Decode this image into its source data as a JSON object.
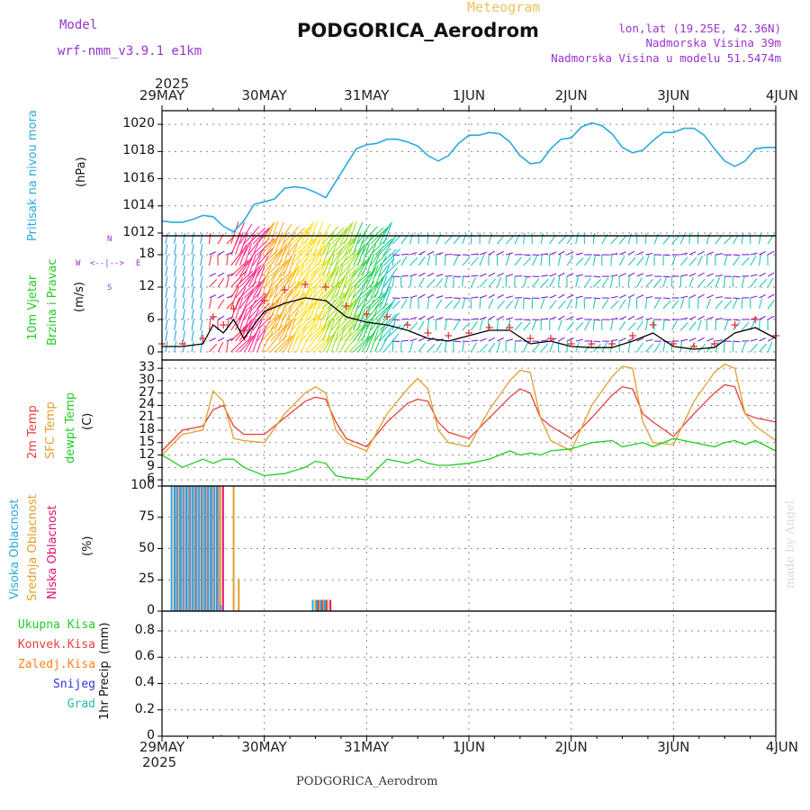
{
  "header": {
    "model_label": "Model",
    "model_name": "wrf-nmm_v3.9.1 e1km",
    "chart_kind": "Meteogram",
    "station": "PODGORICA_Aerodrom",
    "coords": "lon,lat (19.25E, 42.36N)",
    "elevation": "Nadmorska Visina 39m",
    "model_elevation": "Nadmorska Visina u modelu 51.5474m",
    "footer_station": "PODGORICA_Aerodrom",
    "credit": "made by Angel"
  },
  "colors": {
    "model_text": "#9933cc",
    "meteogram_text": "#f0c060",
    "info_text": "#9933cc",
    "pressure": "#29a9e0",
    "wind_line": "#000000",
    "gust_marks": "#e03030",
    "temp2m": "#e8403a",
    "sfc_temp": "#e0a030",
    "dewpt": "#22cc22",
    "cloud_high": "#29a9e0",
    "cloud_mid": "#e0a030",
    "cloud_low": "#e01070",
    "precip_total": "#22cc22",
    "precip_conv": "#e8403a",
    "precip_frozen": "#ff8020",
    "precip_snow": "#3333dd",
    "precip_graupel": "#22bbaa"
  },
  "axes": {
    "year": "2025",
    "dates": [
      "29MAY",
      "30MAY",
      "31MAY",
      "1JUN",
      "2JUN",
      "3JUN",
      "4JUN"
    ],
    "x_range_days": [
      0,
      6
    ]
  },
  "panels": {
    "pressure": {
      "label": "Pritisak na nivou mora",
      "unit": "(hPa)",
      "ticks": [
        "1012",
        "1014",
        "1016",
        "1018",
        "1020"
      ]
    },
    "wind": {
      "label": "10m Vjetar",
      "label2": "Brzina i Pravac",
      "unit": "(m/s)",
      "ticks": [
        "0",
        "6",
        "12",
        "18"
      ],
      "compass": {
        "n": "N",
        "s": "S",
        "w": "W",
        "e": "E",
        "arrows": "<--|-->"
      }
    },
    "temp": {
      "label1": "2m Temp",
      "label2": "SFC Temp",
      "label3": "dewpt Temp",
      "unit": "(C)",
      "ticks": [
        "6",
        "9",
        "12",
        "15",
        "18",
        "21",
        "24",
        "27",
        "30",
        "33"
      ]
    },
    "cloud": {
      "label1": "Visoka Oblacnost",
      "label2": "Srednja Oblacnost",
      "label3": "Niska Oblacnost",
      "unit": "(%)",
      "ticks": [
        "0",
        "25",
        "50",
        "75",
        "100"
      ]
    },
    "precip": {
      "label": "1hr Precip",
      "unit": "(mm)",
      "ticks": [
        "0",
        "0.2",
        "0.4",
        "0.6",
        "0.8"
      ],
      "legend": [
        "Ukupna Kisa",
        "Konvek.Kisa",
        "Zaledj.Kisa",
        "Snijeg",
        "Grad"
      ]
    }
  },
  "chart_data": [
    {
      "type": "line",
      "name": "Pritisak na nivou mora",
      "unit": "hPa",
      "ylim": [
        1011.8,
        1021
      ],
      "x_days": [
        0,
        0.1,
        0.2,
        0.3,
        0.4,
        0.5,
        0.6,
        0.7,
        0.8,
        0.9,
        1.0,
        1.1,
        1.2,
        1.3,
        1.4,
        1.5,
        1.6,
        1.7,
        1.8,
        1.9,
        2.0,
        2.1,
        2.2,
        2.3,
        2.4,
        2.5,
        2.6,
        2.7,
        2.8,
        2.9,
        3.0,
        3.1,
        3.2,
        3.3,
        3.4,
        3.5,
        3.6,
        3.7,
        3.8,
        3.9,
        4.0,
        4.1,
        4.2,
        4.3,
        4.4,
        4.5,
        4.6,
        4.7,
        4.8,
        4.9,
        5.0,
        5.1,
        5.2,
        5.3,
        5.4,
        5.5,
        5.6,
        5.7,
        5.8,
        5.9,
        6.0
      ],
      "values": [
        1012.9,
        1012.8,
        1012.8,
        1013.0,
        1013.3,
        1013.2,
        1012.5,
        1012.1,
        1012.9,
        1014.1,
        1014.3,
        1014.5,
        1015.3,
        1015.4,
        1015.3,
        1015.0,
        1014.6,
        1015.8,
        1017.0,
        1018.2,
        1018.5,
        1018.6,
        1018.9,
        1018.9,
        1018.7,
        1018.4,
        1017.7,
        1017.3,
        1017.7,
        1018.6,
        1019.2,
        1019.2,
        1019.4,
        1019.3,
        1018.7,
        1017.7,
        1017.1,
        1017.2,
        1018.2,
        1018.9,
        1019.0,
        1019.8,
        1020.1,
        1019.9,
        1019.3,
        1018.3,
        1017.9,
        1018.1,
        1018.8,
        1019.4,
        1019.4,
        1019.7,
        1019.7,
        1019.2,
        1018.2,
        1017.3,
        1016.9,
        1017.3,
        1018.2,
        1018.3,
        1018.3
      ]
    },
    {
      "type": "line",
      "name": "10m Vjetar",
      "unit": "m/s",
      "ylim": [
        -1.5,
        21.5
      ],
      "x_days": [
        0,
        0.2,
        0.4,
        0.5,
        0.6,
        0.7,
        0.8,
        1.0,
        1.2,
        1.4,
        1.6,
        1.8,
        2.0,
        2.2,
        2.4,
        2.6,
        2.8,
        3.0,
        3.2,
        3.4,
        3.6,
        3.8,
        4.0,
        4.2,
        4.4,
        4.6,
        4.8,
        5.0,
        5.2,
        5.4,
        5.6,
        5.8,
        6.0
      ],
      "speed": [
        1.0,
        1.0,
        1.5,
        5.0,
        3.5,
        6.0,
        2.5,
        7.5,
        9.0,
        10.0,
        9.5,
        6.5,
        5.5,
        5.0,
        4.0,
        2.5,
        2.0,
        3.0,
        4.0,
        4.0,
        1.5,
        2.0,
        1.0,
        0.8,
        0.8,
        2.0,
        3.5,
        1.0,
        0.5,
        0.8,
        3.5,
        4.5,
        2.5
      ],
      "gust": [
        1.5,
        1.5,
        2.5,
        6.5,
        5.0,
        8.0,
        4.0,
        9.5,
        11.5,
        12.5,
        12.0,
        8.5,
        7.0,
        6.5,
        5.0,
        3.5,
        3.0,
        3.5,
        4.5,
        4.5,
        2.5,
        2.5,
        1.5,
        1.5,
        1.5,
        3.0,
        5.0,
        1.5,
        1.0,
        1.5,
        5.0,
        6.0,
        3.0
      ]
    },
    {
      "type": "line",
      "name": "Temperature",
      "unit": "C",
      "ylim": [
        4.5,
        35
      ],
      "x_days": [
        0,
        0.2,
        0.4,
        0.5,
        0.6,
        0.7,
        0.8,
        1.0,
        1.2,
        1.4,
        1.5,
        1.6,
        1.7,
        1.8,
        2.0,
        2.2,
        2.4,
        2.5,
        2.6,
        2.7,
        2.8,
        3.0,
        3.2,
        3.4,
        3.5,
        3.6,
        3.7,
        3.8,
        4.0,
        4.2,
        4.4,
        4.5,
        4.6,
        4.7,
        4.8,
        5.0,
        5.2,
        5.4,
        5.5,
        5.6,
        5.7,
        5.8,
        6.0
      ],
      "series": [
        {
          "name": "2m Temp",
          "values": [
            13,
            18,
            19,
            23,
            24,
            19,
            17,
            17,
            21,
            25,
            26,
            25.5,
            20,
            16,
            14,
            20,
            24.5,
            25.5,
            25,
            20,
            17.5,
            16,
            21,
            26,
            28,
            27,
            21,
            19,
            16,
            21,
            26.5,
            28.5,
            28,
            22,
            20,
            16.5,
            22,
            27,
            29,
            28.5,
            22,
            21,
            20
          ]
        },
        {
          "name": "SFC Temp",
          "values": [
            12,
            17,
            18,
            27.5,
            25,
            16,
            15.5,
            15,
            22,
            27,
            28.5,
            27,
            18,
            15,
            13,
            22,
            28,
            30.5,
            28,
            18,
            15,
            14,
            23,
            30,
            32.5,
            32,
            21,
            15.5,
            13,
            24,
            31,
            33.5,
            33,
            20,
            15,
            14.5,
            25,
            32,
            34,
            33,
            22,
            19,
            15.5
          ]
        },
        {
          "name": "dewpt Temp",
          "values": [
            12,
            9,
            11,
            10,
            11,
            11,
            9,
            7,
            7.5,
            9,
            10.5,
            10,
            7,
            6.5,
            6,
            11,
            10,
            11,
            10,
            9.5,
            9.5,
            10,
            11,
            13,
            12,
            12.5,
            12,
            13,
            13.5,
            15,
            15.5,
            14,
            14.5,
            15,
            14,
            16,
            15,
            14,
            15,
            15.5,
            14.5,
            15.5,
            13
          ]
        }
      ]
    },
    {
      "type": "bar",
      "name": "Oblacnost",
      "unit": "%",
      "ylim": [
        0,
        100
      ],
      "x_days": [
        0.12,
        0.15,
        0.18,
        0.21,
        0.24,
        0.27,
        0.3,
        0.33,
        0.36,
        0.39,
        0.42,
        0.45,
        0.48,
        0.51,
        0.54,
        0.57,
        0.6,
        0.7,
        0.75,
        1.5,
        1.54,
        1.58,
        1.62
      ],
      "series": [
        {
          "name": "Visoka Oblacnost",
          "values": [
            100,
            100,
            100,
            100,
            100,
            100,
            100,
            100,
            100,
            100,
            100,
            100,
            100,
            100,
            100,
            100,
            5,
            0,
            0,
            9,
            9,
            9,
            9
          ]
        },
        {
          "name": "Srednja Oblacnost",
          "values": [
            100,
            100,
            100,
            100,
            100,
            100,
            100,
            100,
            100,
            100,
            100,
            100,
            100,
            100,
            100,
            100,
            0,
            100,
            26,
            9,
            9,
            9,
            9
          ]
        },
        {
          "name": "Niska Oblacnost",
          "values": [
            100,
            100,
            100,
            100,
            100,
            100,
            100,
            100,
            100,
            100,
            100,
            100,
            100,
            100,
            100,
            100,
            0,
            0,
            0,
            9,
            9,
            9,
            9
          ]
        }
      ]
    },
    {
      "type": "bar",
      "name": "1hr Precip",
      "unit": "mm",
      "ylim": [
        0,
        0.95
      ],
      "x_days": [
        0.58
      ],
      "series": [
        {
          "name": "Ukupna Kisa",
          "values": [
            0.01
          ]
        },
        {
          "name": "Konvek.Kisa",
          "values": [
            0.0
          ]
        },
        {
          "name": "Zaledj.Kisa",
          "values": [
            0.0
          ]
        },
        {
          "name": "Snijeg",
          "values": [
            0.0
          ]
        },
        {
          "name": "Grad",
          "values": [
            0.0
          ]
        }
      ]
    }
  ]
}
